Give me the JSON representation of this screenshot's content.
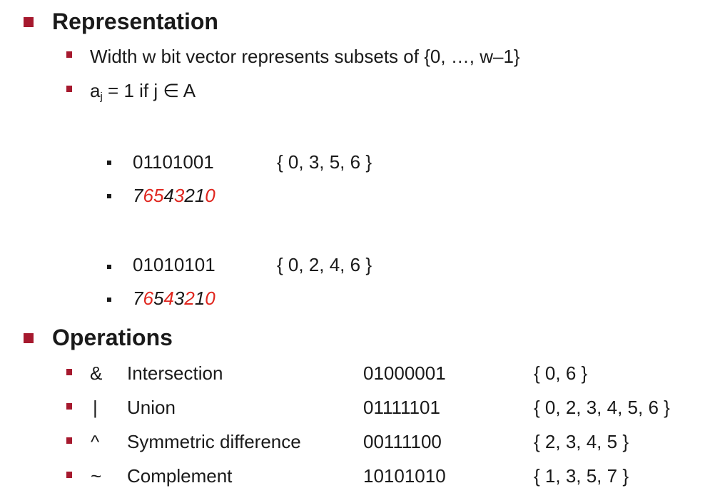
{
  "representation": {
    "heading": "Representation",
    "bullets": [
      "Width w bit vector represents subsets of {0, …, w–1}",
      {
        "pre": "a",
        "sub": "j",
        "post": " = 1 if j  ∈ A"
      }
    ],
    "examples": [
      {
        "bits": "01101001",
        "set": "{ 0, 3, 5, 6 }",
        "index_digits": [
          "7",
          "6",
          "5",
          "4",
          "3",
          "2",
          "1",
          "0"
        ],
        "highlighted": [
          1,
          2,
          4,
          7
        ]
      },
      {
        "bits": "01010101",
        "set": "{ 0, 2, 4, 6 }",
        "index_digits": [
          "7",
          "6",
          "5",
          "4",
          "3",
          "2",
          "1",
          "0"
        ],
        "highlighted": [
          1,
          3,
          5,
          7
        ]
      }
    ]
  },
  "operations": {
    "heading": "Operations",
    "rows": [
      {
        "symbol": "&",
        "name": "Intersection",
        "bits": "01000001",
        "set": "{ 0, 6 }"
      },
      {
        "symbol": "|",
        "name": "Union",
        "bits": "01111101",
        "set": "{ 0, 2, 3, 4, 5, 6 }"
      },
      {
        "symbol": "^",
        "name": "Symmetric difference",
        "bits": "00111100",
        "set": "{ 2, 3, 4, 5 }"
      },
      {
        "symbol": "~",
        "name": "Complement",
        "bits": "10101010",
        "set": "{ 1, 3, 5, 7 }"
      }
    ]
  },
  "colors": {
    "bullet": "#a6192e",
    "highlight": "#e0271f",
    "text": "#1a1a1a"
  }
}
